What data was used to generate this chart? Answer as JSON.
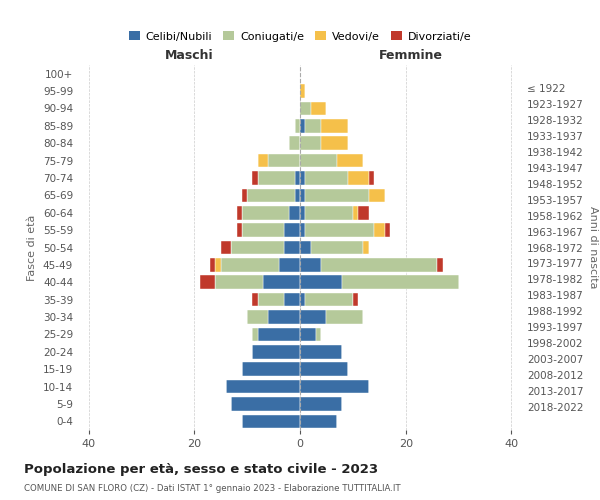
{
  "age_groups": [
    "0-4",
    "5-9",
    "10-14",
    "15-19",
    "20-24",
    "25-29",
    "30-34",
    "35-39",
    "40-44",
    "45-49",
    "50-54",
    "55-59",
    "60-64",
    "65-69",
    "70-74",
    "75-79",
    "80-84",
    "85-89",
    "90-94",
    "95-99",
    "100+"
  ],
  "birth_years": [
    "2018-2022",
    "2013-2017",
    "2008-2012",
    "2003-2007",
    "1998-2002",
    "1993-1997",
    "1988-1992",
    "1983-1987",
    "1978-1982",
    "1973-1977",
    "1968-1972",
    "1963-1967",
    "1958-1962",
    "1953-1957",
    "1948-1952",
    "1943-1947",
    "1938-1942",
    "1933-1937",
    "1928-1932",
    "1923-1927",
    "≤ 1922"
  ],
  "maschi": {
    "celibe": [
      11,
      13,
      14,
      11,
      9,
      8,
      6,
      3,
      7,
      4,
      3,
      3,
      2,
      1,
      1,
      0,
      0,
      0,
      0,
      0,
      0
    ],
    "coniugato": [
      0,
      0,
      0,
      0,
      0,
      1,
      4,
      5,
      9,
      11,
      10,
      8,
      9,
      9,
      7,
      6,
      2,
      1,
      0,
      0,
      0
    ],
    "vedovo": [
      0,
      0,
      0,
      0,
      0,
      0,
      0,
      0,
      0,
      1,
      0,
      0,
      0,
      0,
      0,
      2,
      0,
      0,
      0,
      0,
      0
    ],
    "divorziato": [
      0,
      0,
      0,
      0,
      0,
      0,
      0,
      1,
      3,
      1,
      2,
      1,
      1,
      1,
      1,
      0,
      0,
      0,
      0,
      0,
      0
    ]
  },
  "femmine": {
    "nubile": [
      7,
      8,
      13,
      9,
      8,
      3,
      5,
      1,
      8,
      4,
      2,
      1,
      1,
      1,
      1,
      0,
      0,
      1,
      0,
      0,
      0
    ],
    "coniugata": [
      0,
      0,
      0,
      0,
      0,
      1,
      7,
      9,
      22,
      22,
      10,
      13,
      9,
      12,
      8,
      7,
      4,
      3,
      2,
      0,
      0
    ],
    "vedova": [
      0,
      0,
      0,
      0,
      0,
      0,
      0,
      0,
      0,
      0,
      1,
      2,
      1,
      3,
      4,
      5,
      5,
      5,
      3,
      1,
      0
    ],
    "divorziata": [
      0,
      0,
      0,
      0,
      0,
      0,
      0,
      1,
      0,
      1,
      0,
      1,
      2,
      0,
      1,
      0,
      0,
      0,
      0,
      0,
      0
    ]
  },
  "colors": {
    "celibe": "#3A6EA5",
    "coniugato": "#B5C99A",
    "vedovo": "#F5C04A",
    "divorziato": "#C0392B"
  },
  "xlim": 42,
  "title": "Popolazione per età, sesso e stato civile - 2023",
  "subtitle": "COMUNE DI SAN FLORO (CZ) - Dati ISTAT 1° gennaio 2023 - Elaborazione TUTTITALIA.IT",
  "ylabel_left": "Fasce di età",
  "ylabel_right": "Anni di nascita",
  "xlabel_maschi": "Maschi",
  "xlabel_femmine": "Femmine",
  "legend_labels": [
    "Celibi/Nubili",
    "Coniugati/e",
    "Vedovi/e",
    "Divorziati/e"
  ],
  "bg_color": "#ffffff",
  "grid_color": "#cccccc"
}
